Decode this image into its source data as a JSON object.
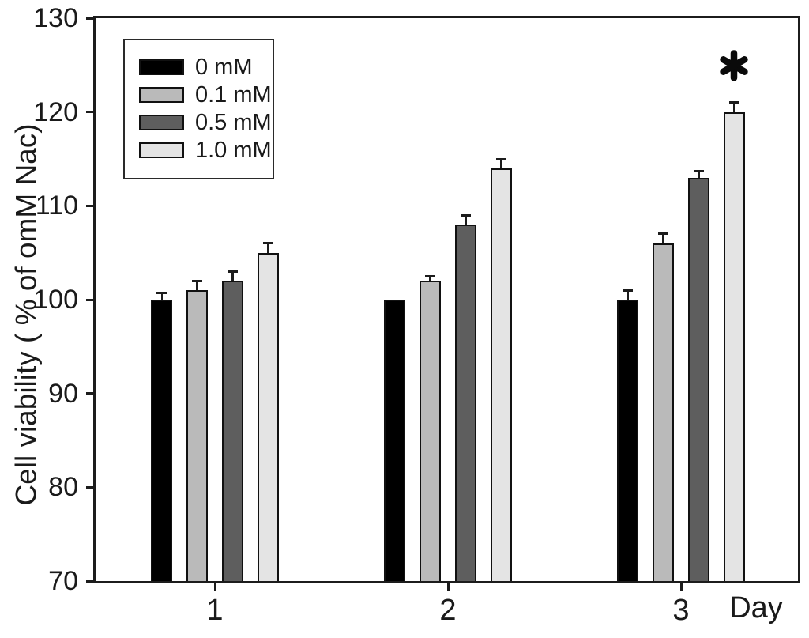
{
  "chart_data": {
    "type": "bar",
    "title": "",
    "xlabel": "Day",
    "ylabel": "Cell viability ( % of omM Nac)",
    "categories": [
      "1",
      "2",
      "3"
    ],
    "series": [
      {
        "name": "0 mM",
        "color": "#000000",
        "values": [
          100,
          100,
          100
        ],
        "errors": [
          0.7,
          0,
          1
        ]
      },
      {
        "name": "0.1 mM",
        "color": "#bababa",
        "values": [
          101,
          102,
          106
        ],
        "errors": [
          1,
          0.5,
          1
        ]
      },
      {
        "name": "0.5 mM",
        "color": "#5e5e5e",
        "values": [
          102,
          108,
          113
        ],
        "errors": [
          1,
          1,
          0.7
        ]
      },
      {
        "name": "1.0 mM",
        "color": "#e4e4e4",
        "values": [
          105,
          114,
          120
        ],
        "errors": [
          1,
          1,
          1
        ]
      }
    ],
    "ylim": [
      70,
      130
    ],
    "yticks": [
      70,
      80,
      90,
      100,
      110,
      120,
      130
    ],
    "grid": false,
    "error_bars": "upper",
    "legend_position": "upper-left",
    "annotation": {
      "symbol": "*",
      "category_index": 2,
      "series_index": 3
    }
  },
  "legend": {
    "items": [
      {
        "label": "0 mM",
        "color": "#000000"
      },
      {
        "label": "0.1 mM",
        "color": "#bababa"
      },
      {
        "label": "0.5 mM",
        "color": "#5e5e5e"
      },
      {
        "label": "1.0 mM",
        "color": "#e4e4e4"
      }
    ]
  },
  "colors": {
    "axis": "#1c1c1c",
    "text": "#1a1a1a",
    "background": "#ffffff"
  }
}
